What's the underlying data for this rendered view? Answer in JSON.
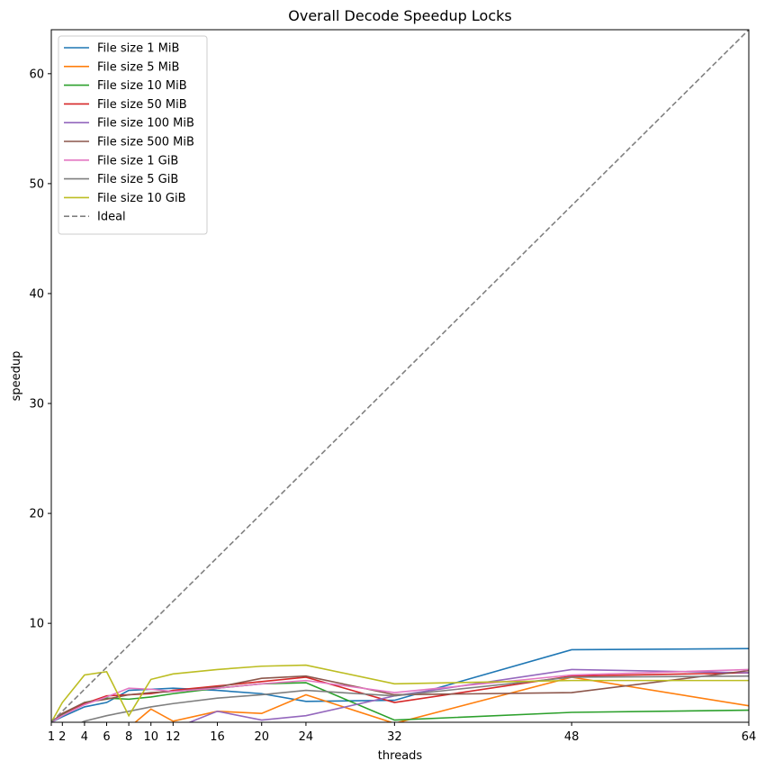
{
  "chart_data": {
    "type": "line",
    "title": "Overall Decode Speedup Locks",
    "xlabel": "threads",
    "ylabel": "speedup",
    "xlim": [
      1,
      64
    ],
    "ylim": [
      1,
      64
    ],
    "xticks": [
      1,
      2,
      4,
      6,
      8,
      10,
      12,
      16,
      20,
      24,
      32,
      48,
      64
    ],
    "yticks": [
      10,
      20,
      30,
      40,
      50,
      60
    ],
    "grid": false,
    "legend_position": "top-left",
    "x": [
      1,
      2,
      4,
      6,
      8,
      10,
      12,
      16,
      20,
      24,
      32,
      48,
      64
    ],
    "series": [
      {
        "name": "File size 1 MiB",
        "color": "#1f77b4",
        "style": "solid",
        "values": [
          1.0,
          1.5,
          2.4,
          2.8,
          3.9,
          4.0,
          4.1,
          3.9,
          3.6,
          2.9,
          3.0,
          7.6,
          7.7
        ]
      },
      {
        "name": "File size 5 MiB",
        "color": "#ff7f0e",
        "style": "solid",
        "values": [
          0.1,
          0.2,
          0.3,
          0.4,
          0.5,
          2.2,
          1.1,
          2.0,
          1.8,
          3.5,
          0.9,
          5.1,
          2.5
        ]
      },
      {
        "name": "File size 10 MiB",
        "color": "#2ca02c",
        "style": "solid",
        "values": [
          1.0,
          1.7,
          2.8,
          3.2,
          3.1,
          3.3,
          3.6,
          4.1,
          4.5,
          4.6,
          1.2,
          1.9,
          2.1
        ]
      },
      {
        "name": "File size 50 MiB",
        "color": "#d62728",
        "style": "solid",
        "values": [
          1.0,
          1.8,
          2.7,
          3.4,
          3.5,
          3.6,
          3.9,
          4.3,
          4.7,
          5.1,
          2.8,
          5.2,
          5.5
        ]
      },
      {
        "name": "File size 100 MiB",
        "color": "#9467bd",
        "style": "solid",
        "values": [
          0.1,
          0.1,
          0.2,
          0.2,
          0.3,
          0.3,
          0.4,
          2.0,
          1.2,
          1.6,
          3.4,
          5.8,
          5.5
        ]
      },
      {
        "name": "File size 500 MiB",
        "color": "#8c564b",
        "style": "solid",
        "values": [
          1.0,
          1.8,
          2.8,
          3.1,
          3.5,
          3.7,
          3.8,
          4.2,
          5.0,
          5.2,
          3.5,
          3.7,
          5.7
        ]
      },
      {
        "name": "File size 1 GiB",
        "color": "#e377c2",
        "style": "solid",
        "values": [
          1.0,
          1.6,
          2.6,
          3.3,
          4.1,
          4.0,
          3.8,
          4.1,
          4.5,
          4.8,
          3.7,
          5.3,
          5.8
        ]
      },
      {
        "name": "File size 5 GiB",
        "color": "#7f7f7f",
        "style": "solid",
        "values": [
          0.1,
          0.2,
          1.1,
          1.6,
          2.0,
          2.4,
          2.7,
          3.2,
          3.5,
          3.9,
          3.4,
          5.1,
          5.2
        ]
      },
      {
        "name": "File size 10 GiB",
        "color": "#bcbd22",
        "style": "solid",
        "values": [
          1.0,
          2.8,
          5.3,
          5.6,
          1.6,
          4.9,
          5.4,
          5.8,
          6.1,
          6.2,
          4.5,
          4.8,
          4.8
        ]
      },
      {
        "name": "Ideal",
        "color": "#808080",
        "style": "dashed",
        "values": [
          1,
          2,
          4,
          6,
          8,
          10,
          12,
          16,
          20,
          24,
          32,
          48,
          64
        ]
      }
    ]
  }
}
